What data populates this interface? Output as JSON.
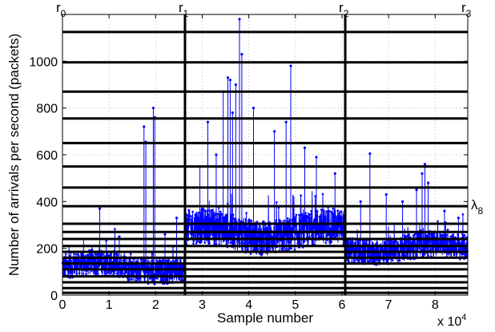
{
  "chart_data": {
    "type": "scatter",
    "xlabel": "Sample number",
    "ylabel": "Number of arrivals per second (packets)",
    "x_scale_label": "x 10",
    "x_scale_exponent": "4",
    "xlim": [
      0,
      8.7
    ],
    "ylim": [
      0,
      1200
    ],
    "xticks": [
      0,
      1,
      2,
      3,
      4,
      5,
      6,
      7,
      8
    ],
    "yticks": [
      0,
      200,
      400,
      600,
      800,
      1000
    ],
    "grid": true,
    "series_color": "#0000ff",
    "threshold_levels": [
      10,
      30,
      55,
      80,
      110,
      135,
      160,
      185,
      210,
      240,
      270,
      305,
      380,
      460,
      550,
      650,
      755,
      870,
      995,
      1125
    ],
    "threshold_color": "#000000",
    "change_points": [
      {
        "label": "r",
        "sub": "0",
        "x": 0
      },
      {
        "label": "r",
        "sub": "1",
        "x": 2.63
      },
      {
        "label": "r",
        "sub": "2",
        "x": 6.07
      },
      {
        "label": "r",
        "sub": "3",
        "x": 8.7
      }
    ],
    "level_annotation": {
      "label": "λ",
      "sub": "8",
      "y": 380
    },
    "segments": [
      {
        "x_start": 0.0,
        "x_end": 2.63,
        "mean": 120,
        "spread": 55,
        "spikes": [
          [
            0.8,
            370
          ],
          [
            1.22,
            250
          ],
          [
            1.75,
            720
          ],
          [
            1.79,
            655
          ],
          [
            1.95,
            800
          ],
          [
            1.98,
            760
          ],
          [
            2.2,
            260
          ],
          [
            2.45,
            330
          ]
        ]
      },
      {
        "x_start": 2.63,
        "x_end": 6.07,
        "mean": 270,
        "spread": 75,
        "spikes": [
          [
            2.95,
            550
          ],
          [
            3.12,
            740
          ],
          [
            3.3,
            600
          ],
          [
            3.45,
            870
          ],
          [
            3.55,
            930
          ],
          [
            3.6,
            920
          ],
          [
            3.65,
            780
          ],
          [
            3.72,
            900
          ],
          [
            3.8,
            1180
          ],
          [
            3.85,
            1030
          ],
          [
            4.1,
            800
          ],
          [
            4.55,
            700
          ],
          [
            4.8,
            740
          ],
          [
            4.9,
            980
          ],
          [
            5.2,
            630
          ],
          [
            5.45,
            590
          ],
          [
            5.85,
            520
          ]
        ]
      },
      {
        "x_start": 6.07,
        "x_end": 8.7,
        "mean": 200,
        "spread": 55,
        "spikes": [
          [
            6.4,
            400
          ],
          [
            6.6,
            605
          ],
          [
            6.95,
            430
          ],
          [
            7.3,
            400
          ],
          [
            7.6,
            450
          ],
          [
            7.72,
            520
          ],
          [
            7.78,
            560
          ],
          [
            7.85,
            480
          ],
          [
            8.2,
            360
          ],
          [
            8.5,
            330
          ]
        ]
      }
    ]
  }
}
